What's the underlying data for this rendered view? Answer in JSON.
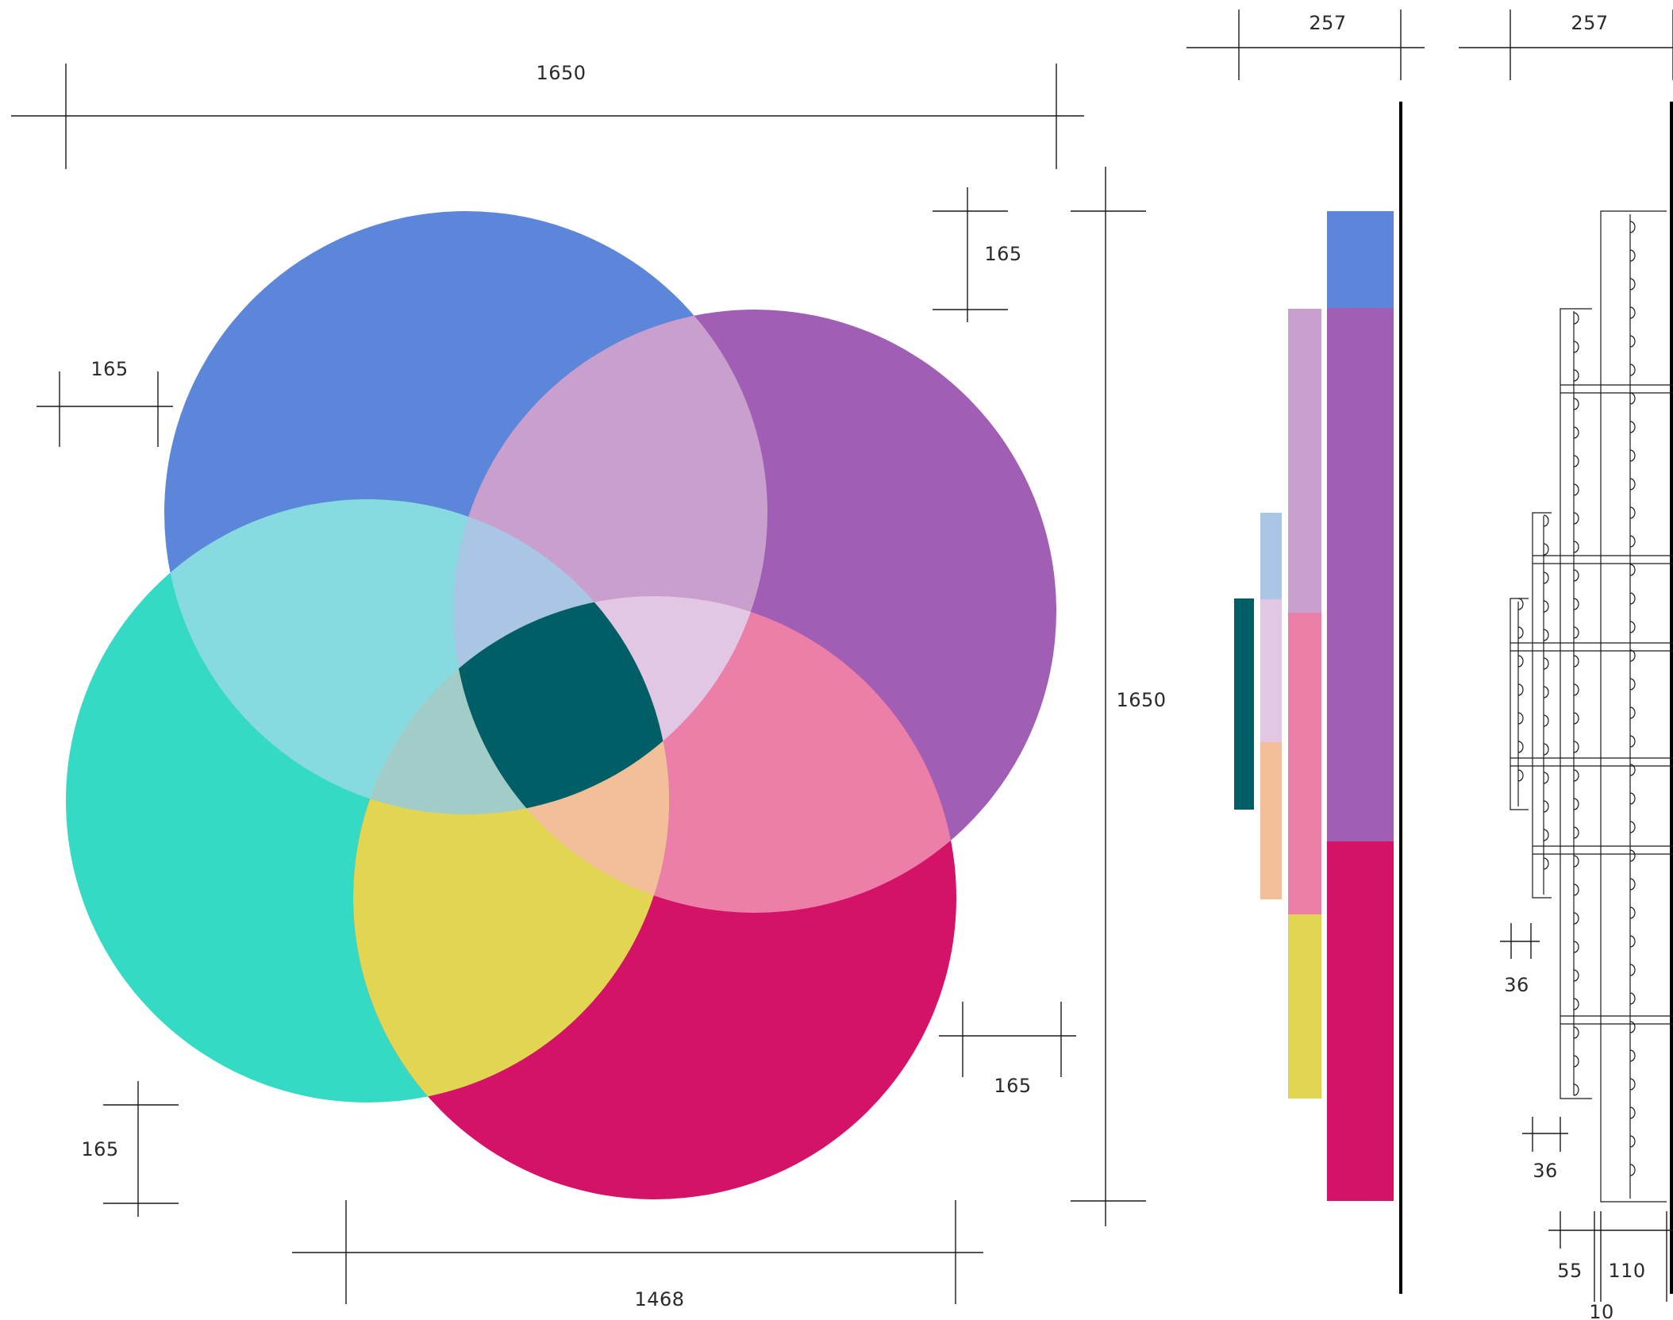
{
  "colors": {
    "blue": "#5b86da",
    "purple": "#a05fb5",
    "teal": "#35dac5",
    "magenta": "#d41267",
    "lilac": "#c9a0cd",
    "light_cyan": "#87dae0",
    "light_blue": "#a9c6e4",
    "pale_lilac": "#e2c7e4",
    "pink": "#ec7fa7",
    "grey_green": "#a1ccc8",
    "dark_teal": "#005f66",
    "yellow": "#e1d552",
    "peach": "#f3bf98"
  },
  "dimensions": {
    "top_width": "1650",
    "right_height": "1650",
    "bottom_width": "1468",
    "offset_top_right": "165",
    "offset_left": "165",
    "offset_bottom_right": "165",
    "offset_bottom_left": "165",
    "bars_width": "257",
    "shelf_width": "257",
    "hook_a": "36",
    "hook_b": "36",
    "foot_55": "55",
    "foot_110": "110",
    "foot_10": "10",
    "foot_cut": "10"
  },
  "icons": {
    "hook": "hook-icon"
  }
}
